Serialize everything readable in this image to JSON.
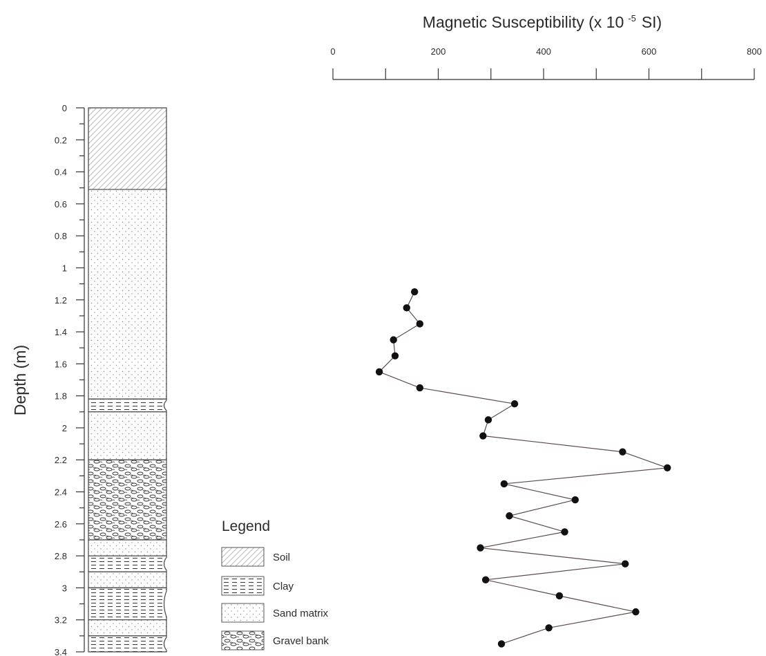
{
  "chart_data": {
    "type": "scatter",
    "title": "",
    "xlabel_main": "Magnetic Susceptibility (x 10",
    "xlabel_exp": "-5",
    "xlabel_unit": "SI)",
    "ylabel": "Depth (m)",
    "xlim": [
      0,
      800
    ],
    "ylim": [
      0,
      3.4
    ],
    "x_ticks": [
      "0",
      "200",
      "400",
      "600",
      "800"
    ],
    "y_ticks": [
      "0",
      "0.2",
      "0.4",
      "0.6",
      "0.8",
      "1",
      "1.2",
      "1.4",
      "1.6",
      "1.8",
      "2",
      "2.2",
      "2.4",
      "2.6",
      "2.8",
      "3",
      "3.2",
      "3.4"
    ],
    "series": [
      {
        "depth": [
          1.15,
          1.25,
          1.35,
          1.45,
          1.55,
          1.65,
          1.75,
          1.85,
          1.95,
          2.05,
          2.15,
          2.25,
          2.35,
          2.45,
          2.55,
          2.65,
          2.75,
          2.85,
          2.95,
          3.05,
          3.15,
          3.25,
          3.35
        ],
        "susceptibility": [
          155,
          140,
          165,
          115,
          118,
          88,
          165,
          345,
          295,
          285,
          550,
          635,
          325,
          460,
          335,
          440,
          280,
          555,
          290,
          430,
          575,
          410,
          320
        ]
      }
    ],
    "lithology": [
      {
        "unit": "Soil",
        "top": 0.0,
        "bottom": 0.51
      },
      {
        "unit": "Sand matrix",
        "top": 0.51,
        "bottom": 1.82
      },
      {
        "unit": "Clay",
        "top": 1.82,
        "bottom": 1.9
      },
      {
        "unit": "Sand matrix",
        "top": 1.9,
        "bottom": 2.2
      },
      {
        "unit": "Gravel bank",
        "top": 2.2,
        "bottom": 2.7
      },
      {
        "unit": "Sand matrix",
        "top": 2.7,
        "bottom": 2.8
      },
      {
        "unit": "Clay",
        "top": 2.8,
        "bottom": 2.9
      },
      {
        "unit": "Sand matrix",
        "top": 2.9,
        "bottom": 3.0
      },
      {
        "unit": "Clay",
        "top": 3.0,
        "bottom": 3.2
      },
      {
        "unit": "Sand matrix",
        "top": 3.2,
        "bottom": 3.3
      },
      {
        "unit": "Clay",
        "top": 3.3,
        "bottom": 3.4
      }
    ],
    "legend": {
      "title": "Legend",
      "items": [
        "Soil",
        "Clay",
        "Sand matrix",
        "Gravel bank"
      ]
    },
    "colors": {
      "line": "#5a4a4a",
      "marker": "#111111",
      "axis": "#333333"
    }
  }
}
